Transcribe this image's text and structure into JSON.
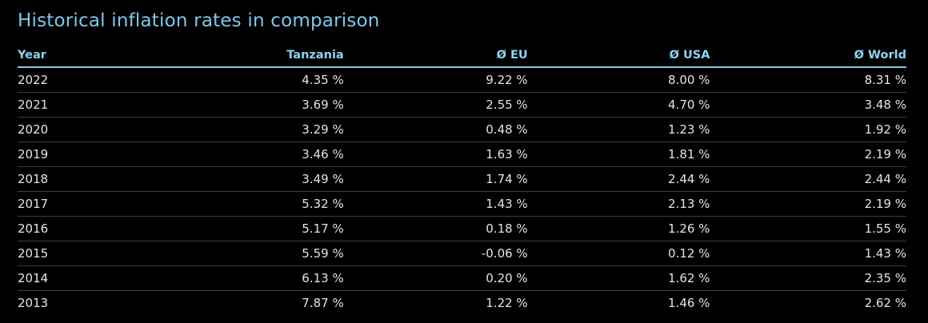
{
  "page": {
    "title": "Historical inflation rates in comparison"
  },
  "colors": {
    "background": "#000000",
    "title_text": "#7fc8ec",
    "header_text": "#8fd2f2",
    "header_underline": "#85c8e8",
    "row_text": "#e4e4e4",
    "row_separator": "#3d3d3d"
  },
  "chart_data": {
    "type": "table",
    "title": "Historical inflation rates in comparison",
    "columns": [
      "Year",
      "Tanzania",
      "Ø EU",
      "Ø USA",
      "Ø World"
    ],
    "column_alignments": [
      "left",
      "right",
      "right",
      "right",
      "right"
    ],
    "unit": "%",
    "rows": [
      [
        "2022",
        "4.35 %",
        "9.22 %",
        "8.00 %",
        "8.31 %"
      ],
      [
        "2021",
        "3.69 %",
        "2.55 %",
        "4.70 %",
        "3.48 %"
      ],
      [
        "2020",
        "3.29 %",
        "0.48 %",
        "1.23 %",
        "1.92 %"
      ],
      [
        "2019",
        "3.46 %",
        "1.63 %",
        "1.81 %",
        "2.19 %"
      ],
      [
        "2018",
        "3.49 %",
        "1.74 %",
        "2.44 %",
        "2.44 %"
      ],
      [
        "2017",
        "5.32 %",
        "1.43 %",
        "2.13 %",
        "2.19 %"
      ],
      [
        "2016",
        "5.17 %",
        "0.18 %",
        "1.26 %",
        "1.55 %"
      ],
      [
        "2015",
        "5.59 %",
        "-0.06 %",
        "0.12 %",
        "1.43 %"
      ],
      [
        "2014",
        "6.13 %",
        "0.20 %",
        "1.62 %",
        "2.35 %"
      ],
      [
        "2013",
        "7.87 %",
        "1.22 %",
        "1.46 %",
        "2.62 %"
      ]
    ],
    "series": [
      {
        "name": "Tanzania",
        "values": [
          4.35,
          3.69,
          3.29,
          3.46,
          3.49,
          5.32,
          5.17,
          5.59,
          6.13,
          7.87
        ]
      },
      {
        "name": "Ø EU",
        "values": [
          9.22,
          2.55,
          0.48,
          1.63,
          1.74,
          1.43,
          0.18,
          -0.06,
          0.2,
          1.22
        ]
      },
      {
        "name": "Ø USA",
        "values": [
          8.0,
          4.7,
          1.23,
          1.81,
          2.44,
          2.13,
          1.26,
          0.12,
          1.62,
          1.46
        ]
      },
      {
        "name": "Ø World",
        "values": [
          8.31,
          3.48,
          1.92,
          2.19,
          2.44,
          2.19,
          1.55,
          1.43,
          2.35,
          2.62
        ]
      }
    ],
    "categories": [
      "2022",
      "2021",
      "2020",
      "2019",
      "2018",
      "2017",
      "2016",
      "2015",
      "2014",
      "2013"
    ]
  }
}
